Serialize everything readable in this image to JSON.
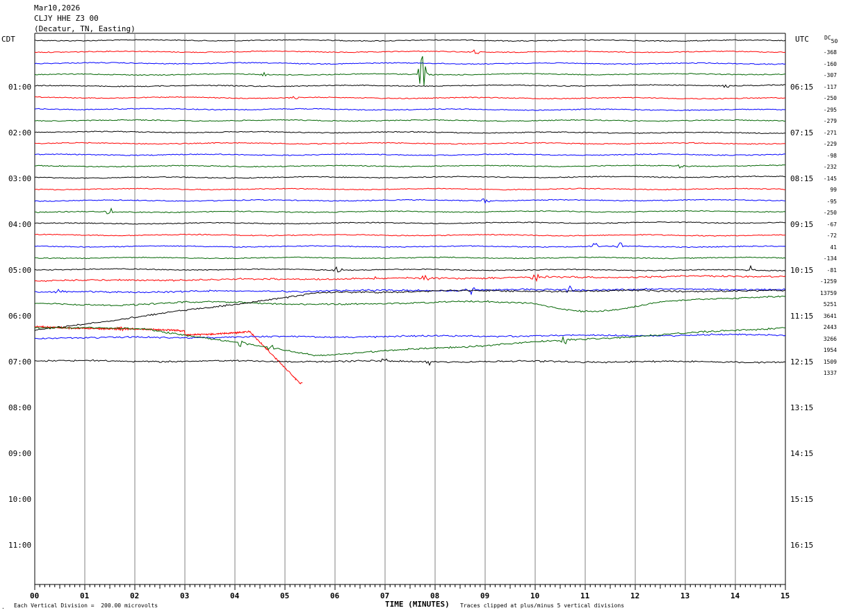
{
  "header": {
    "date": "Mar10,2026",
    "station": "CLJY HHE Z3 00",
    "location": "(Decatur, TN, Easting)"
  },
  "left_axis_title": "CDT",
  "right_axis_title": "UTC",
  "dc_header": "DC",
  "dc_sub": "50",
  "footer": {
    "scale_note": "Each Vertical Division =  200.00 microvolts",
    "xlabel": "TIME (MINUTES)",
    "clip_note": "Traces clipped at plus/minus 5 vertical divisions"
  },
  "colors": {
    "black": "#000000",
    "red": "#ff0000",
    "blue": "#0000ff",
    "green": "#006400",
    "grid": "#808080"
  },
  "chart_data": {
    "type": "line",
    "title": "CLJY HHE Z3 00",
    "xlabel": "TIME (MINUTES)",
    "xlim": [
      0,
      15
    ],
    "x_ticks": [
      "00",
      "01",
      "02",
      "03",
      "04",
      "05",
      "06",
      "07",
      "08",
      "09",
      "10",
      "11",
      "12",
      "13",
      "14",
      "15"
    ],
    "left_hour_labels": [
      "01:00",
      "02:00",
      "03:00",
      "04:00",
      "05:00",
      "06:00",
      "07:00",
      "08:00",
      "09:00",
      "10:00",
      "11:00"
    ],
    "right_hour_labels": [
      "06:15",
      "07:15",
      "08:15",
      "09:15",
      "10:15",
      "11:15",
      "12:15",
      "13:15",
      "14:15",
      "15:15",
      "16:15"
    ],
    "trace_colors": [
      "black",
      "red",
      "blue",
      "green"
    ],
    "dc_offsets": [
      "-368",
      "-160",
      "-307",
      "-117",
      "-250",
      "-295",
      "-279",
      "-271",
      "-229",
      "-98",
      "-232",
      "-145",
      "99",
      "-95",
      "-250",
      "-67",
      "-72",
      "41",
      "-134",
      "-81",
      "-1259",
      "13759",
      "5251",
      "3641",
      "2443",
      "3266",
      "1954",
      "1509",
      "1337"
    ],
    "events": [
      {
        "row": 1,
        "minute": 8.8,
        "amp": 5
      },
      {
        "row": 3,
        "minute": 4.6,
        "amp": 3
      },
      {
        "row": 3,
        "minute": 7.75,
        "amp": 30
      },
      {
        "row": 4,
        "minute": 13.8,
        "amp": 4
      },
      {
        "row": 5,
        "minute": 5.2,
        "amp": 3
      },
      {
        "row": 11,
        "minute": 12.9,
        "amp": 4
      },
      {
        "row": 14,
        "minute": 9.0,
        "amp": 6
      },
      {
        "row": 15,
        "minute": 1.5,
        "amp": 7
      },
      {
        "row": 18,
        "minute": 11.2,
        "amp": 6
      },
      {
        "row": 18,
        "minute": 11.7,
        "amp": 5
      },
      {
        "row": 20,
        "minute": 6.05,
        "amp": 9
      },
      {
        "row": 20,
        "minute": 14.3,
        "amp": 6
      },
      {
        "row": 21,
        "minute": 6.8,
        "amp": 4
      },
      {
        "row": 21,
        "minute": 7.8,
        "amp": 7
      },
      {
        "row": 21,
        "minute": 10.0,
        "amp": 7
      },
      {
        "row": 22,
        "minute": 0.5,
        "amp": 4
      },
      {
        "row": 22,
        "minute": 8.7,
        "amp": 9
      },
      {
        "row": 22,
        "minute": 10.7,
        "amp": 6
      },
      {
        "row": 25,
        "minute": 1.7,
        "amp": 5
      },
      {
        "row": 27,
        "minute": 4.1,
        "amp": 5
      },
      {
        "row": 27,
        "minute": 4.7,
        "amp": 6
      },
      {
        "row": 27,
        "minute": 10.6,
        "amp": 8
      },
      {
        "row": 28,
        "minute": 7.0,
        "amp": 4
      },
      {
        "row": 28,
        "minute": 7.9,
        "amp": 6
      },
      {
        "row": 29,
        "minute": 0.85,
        "amp": 5
      },
      {
        "row": 29,
        "minute": 4.05,
        "amp": 6
      },
      {
        "row": 29,
        "minute": 8.15,
        "amp": 4
      },
      {
        "row": 29,
        "minute": 11.65,
        "amp": 6
      },
      {
        "row": 29,
        "minute": 14.85,
        "amp": 5
      }
    ]
  }
}
